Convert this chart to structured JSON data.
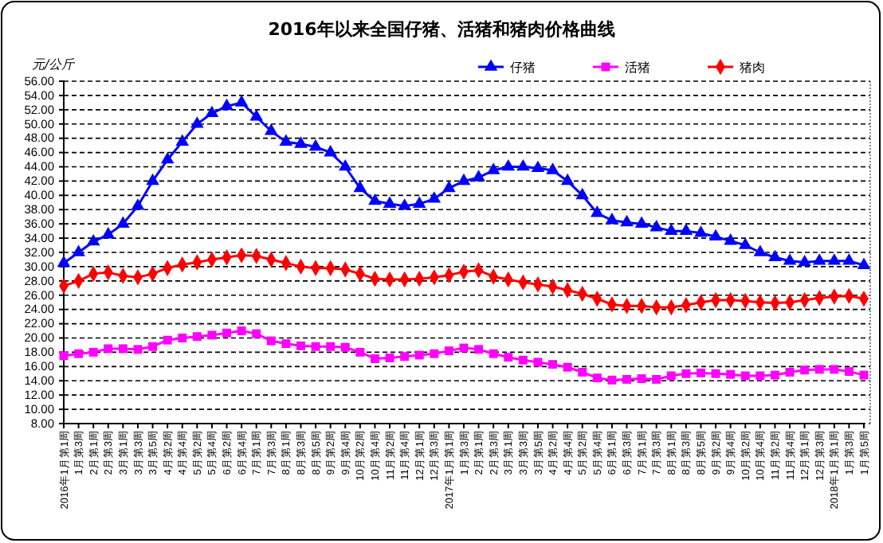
{
  "chart_data": {
    "type": "line",
    "title": "2016年以来全国仔猪、活猪和猪肉价格曲线",
    "ylabel": "元/公斤",
    "categories": [
      "2016年1月第1周",
      "1月第3周",
      "2月第1周",
      "2月第3周",
      "3月第1周",
      "3月第3周",
      "3月第5周",
      "4月第2周",
      "4月第4周",
      "5月第2周",
      "5月第4周",
      "6月第2周",
      "6月第4周",
      "7月第1周",
      "7月第3周",
      "8月第1周",
      "8月第3周",
      "8月第5周",
      "9月第2周",
      "9月第4周",
      "10月第2周",
      "10月第4周",
      "11月第2周",
      "11月第4周",
      "12月第1周",
      "12月第3周",
      "2017年1月第1周",
      "1月第3周",
      "2月第1周",
      "2月第3周",
      "3月第1周",
      "3月第3周",
      "3月第5周",
      "4月第2周",
      "4月第4周",
      "5月第2周",
      "5月第4周",
      "6月第1周",
      "6月第3周",
      "7月第1周",
      "7月第3周",
      "8月第1周",
      "8月第3周",
      "8月第5周",
      "9月第2周",
      "9月第4周",
      "10月第2周",
      "10月第4周",
      "11月第2周",
      "11月第4周",
      "12月第1周",
      "12月第3周",
      "2018年1月第1周",
      "1月第3周",
      "1月第5周"
    ],
    "series": [
      {
        "name": "仔猪",
        "color": "#0000ff",
        "marker": "triangle",
        "values": [
          30.5,
          32,
          33.5,
          34.5,
          36,
          38.5,
          42,
          45,
          47.5,
          50,
          51.5,
          52.5,
          53,
          51,
          49,
          47.5,
          47.2,
          46.8,
          46,
          44,
          41,
          39.2,
          38.8,
          38.5,
          38.8,
          39.5,
          41,
          42,
          42.5,
          43.5,
          44,
          44,
          43.8,
          43.5,
          42,
          40,
          37.5,
          36.5,
          36.2,
          36,
          35.5,
          35,
          35,
          34.7,
          34.2,
          33.6,
          33,
          32,
          31.3,
          30.8,
          30.6,
          30.8,
          30.8,
          30.8,
          30.2
        ]
      },
      {
        "name": "活猪",
        "color": "#ff00ff",
        "marker": "square",
        "values": [
          17.5,
          17.8,
          18,
          18.5,
          18.5,
          18.4,
          18.8,
          19.7,
          20,
          20.2,
          20.4,
          20.7,
          21,
          20.6,
          19.6,
          19.2,
          18.9,
          18.8,
          18.8,
          18.7,
          18,
          17.1,
          17.2,
          17.4,
          17.6,
          17.8,
          18.2,
          18.6,
          18.4,
          17.8,
          17.3,
          16.9,
          16.6,
          16.3,
          15.9,
          15.2,
          14.4,
          14.1,
          14.2,
          14.3,
          14.2,
          14.7,
          15,
          15.1,
          15,
          14.9,
          14.7,
          14.7,
          14.8,
          15.2,
          15.5,
          15.6,
          15.6,
          15.3,
          14.8
        ]
      },
      {
        "name": "猪肉",
        "color": "#ff0000",
        "marker": "diamond",
        "values": [
          27.3,
          28,
          29,
          29.2,
          28.7,
          28.5,
          29,
          29.8,
          30.3,
          30.6,
          31,
          31.3,
          31.6,
          31.5,
          31,
          30.5,
          30,
          29.8,
          29.8,
          29.6,
          29,
          28.3,
          28.2,
          28.2,
          28.3,
          28.5,
          28.8,
          29.3,
          29.5,
          28.6,
          28.2,
          27.8,
          27.5,
          27.2,
          26.7,
          26.2,
          25.5,
          24.7,
          24.5,
          24.5,
          24.3,
          24.3,
          24.6,
          25,
          25.3,
          25.3,
          25.2,
          25,
          24.9,
          25,
          25.3,
          25.6,
          25.8,
          25.9,
          25.5
        ]
      }
    ],
    "ylim": [
      8,
      56
    ],
    "yticks": [
      {
        "value": 8,
        "label": "8.00"
      },
      {
        "value": 10,
        "label": "10.00"
      },
      {
        "value": 12,
        "label": "12.00"
      },
      {
        "value": 14,
        "label": "14.00"
      },
      {
        "value": 16,
        "label": "16.00"
      },
      {
        "value": 18,
        "label": "18.00"
      },
      {
        "value": 20,
        "label": "20.00"
      },
      {
        "value": 22,
        "label": "22.00"
      },
      {
        "value": 24,
        "label": "24.00"
      },
      {
        "value": 26,
        "label": "26.00"
      },
      {
        "value": 28,
        "label": "28.00"
      },
      {
        "value": 30,
        "label": "30.00"
      },
      {
        "value": 32,
        "label": "32.00"
      },
      {
        "value": 34,
        "label": "34.00"
      },
      {
        "value": 36,
        "label": "36.00"
      },
      {
        "value": 38,
        "label": "38.00"
      },
      {
        "value": 40,
        "label": "40.00"
      },
      {
        "value": 42,
        "label": "42.00"
      },
      {
        "value": 44,
        "label": "44.00"
      },
      {
        "value": 46,
        "label": "46.00"
      },
      {
        "value": 48,
        "label": "48.00"
      },
      {
        "value": 50,
        "label": "50.00"
      },
      {
        "value": 52,
        "label": "52.00"
      },
      {
        "value": 54,
        "label": "54.00"
      },
      {
        "value": 56,
        "label": "56.00"
      }
    ],
    "grid": "y",
    "legend": "top right",
    "line_style": "solid"
  }
}
